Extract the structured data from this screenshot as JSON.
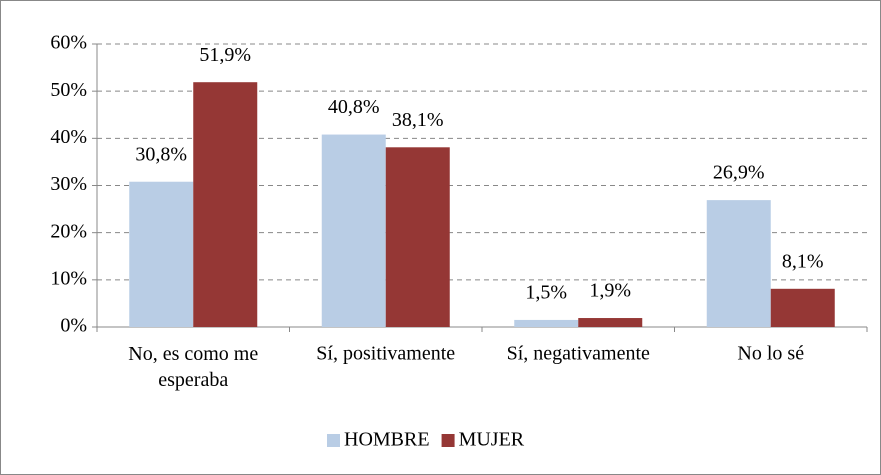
{
  "chart_data": {
    "type": "bar",
    "categories": [
      "No, es como me esperaba",
      "Sí, positivamente",
      "Sí, negativamente",
      "No lo sé"
    ],
    "series": [
      {
        "name": "HOMBRE",
        "color": "#b9cde5",
        "values": [
          30.8,
          40.8,
          1.5,
          26.9
        ],
        "value_labels": [
          "30,8%",
          "40,8%",
          "1,5%",
          "26,9%"
        ]
      },
      {
        "name": "MUJER",
        "color": "#953735",
        "values": [
          51.9,
          38.1,
          1.9,
          8.1
        ],
        "value_labels": [
          "51,9%",
          "38,1%",
          "1,9%",
          "8,1%"
        ]
      }
    ],
    "ylim": [
      0,
      60
    ],
    "yticks": [
      {
        "value": 0,
        "label": "0%"
      },
      {
        "value": 10,
        "label": "10%"
      },
      {
        "value": 20,
        "label": "20%"
      },
      {
        "value": 30,
        "label": "30%"
      },
      {
        "value": 40,
        "label": "40%"
      },
      {
        "value": 50,
        "label": "50%"
      },
      {
        "value": 60,
        "label": "60%"
      }
    ],
    "grid": true,
    "legend": "bottom"
  }
}
